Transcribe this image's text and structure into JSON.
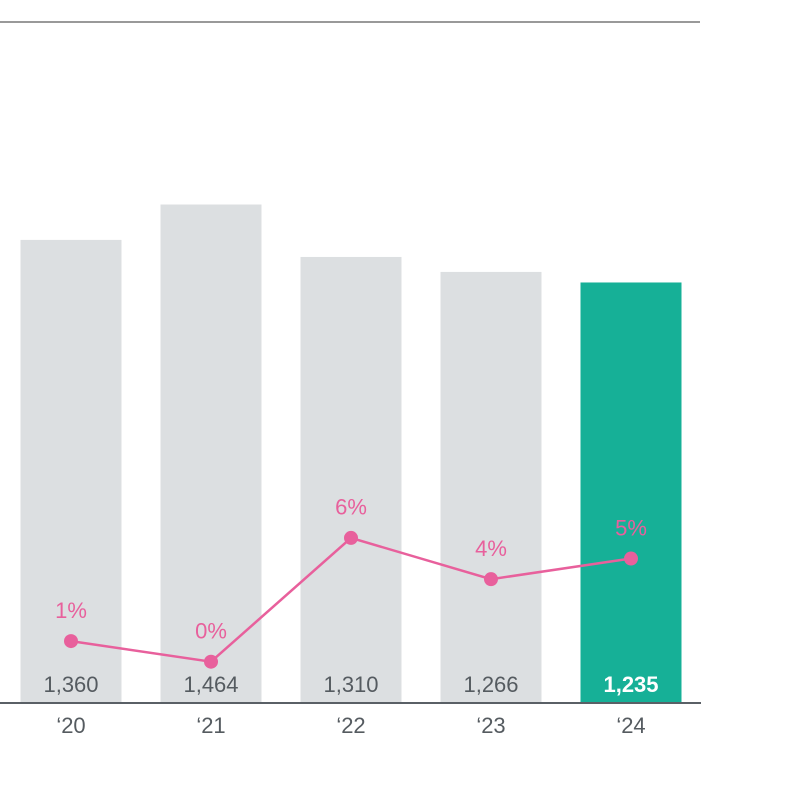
{
  "chart_data": {
    "type": "bar",
    "categories": [
      "‘20",
      "‘21",
      "‘22",
      "‘23",
      "‘24"
    ],
    "ylim": [
      0,
      2000
    ],
    "y2lim": [
      -2,
      31
    ],
    "series": [
      {
        "type": "bar",
        "values": [
          1360,
          1464,
          1310,
          1266,
          1235
        ],
        "value_labels": [
          "1,360",
          "1,464",
          "1,310",
          "1,266",
          "1,235"
        ],
        "colors": [
          "#dcdfe1",
          "#dcdfe1",
          "#dcdfe1",
          "#dcdfe1",
          "#16b097"
        ],
        "label_colors": [
          "#555b60",
          "#555b60",
          "#555b60",
          "#555b60",
          "#ffffff"
        ]
      },
      {
        "type": "line",
        "axis": "y2",
        "color": "#e8609c",
        "values": [
          1,
          0,
          6,
          4,
          5
        ],
        "value_labels": [
          "1%",
          "0%",
          "6%",
          "4%",
          "5%"
        ]
      }
    ]
  }
}
